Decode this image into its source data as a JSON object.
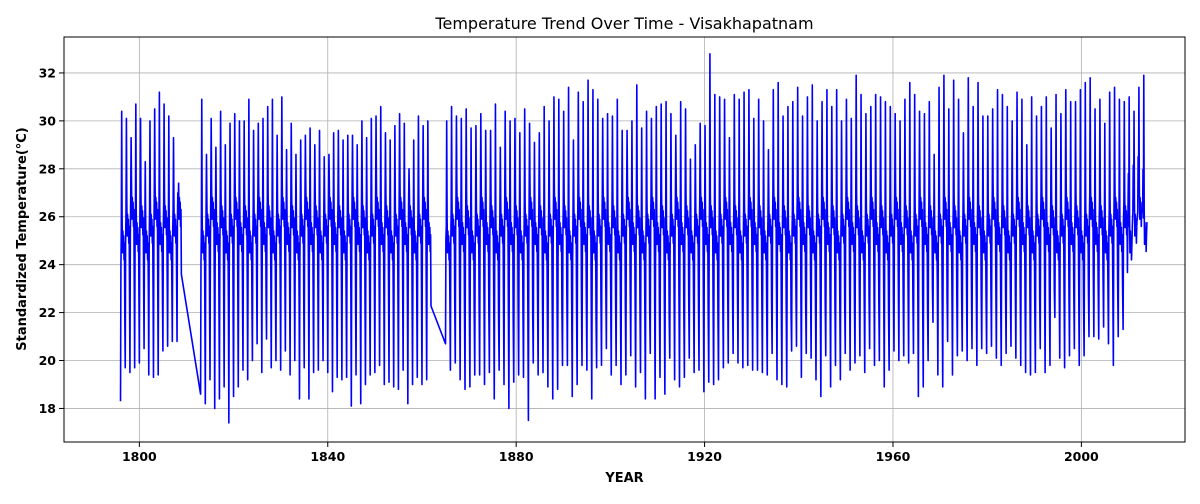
{
  "chart_data": {
    "type": "line",
    "title": "Temperature Trend Over Time - Visakhapatnam",
    "xlabel": "YEAR",
    "ylabel": "Standardized Temperature(°C)",
    "xlim": [
      1784,
      2022
    ],
    "ylim": [
      16.6,
      33.5
    ],
    "grid": true,
    "x_ticks": [
      1800,
      1840,
      1880,
      1920,
      1960,
      2000
    ],
    "y_ticks": [
      18,
      20,
      22,
      24,
      26,
      28,
      30,
      32
    ],
    "series": [
      {
        "color": "#0000ff",
        "segments": [
          {
            "start_year": 1796,
            "end_year": 1808,
            "peaks": [
              30.4,
              30.1,
              29.3,
              30.7,
              30.1,
              28.3,
              30.0,
              30.5,
              31.2,
              30.7,
              30.2,
              29.3,
              26.5
            ],
            "troughs": [
              18.3,
              19.7,
              19.5,
              19.7,
              19.9,
              20.5,
              19.4,
              19.3,
              19.4,
              20.4,
              20.6,
              20.8
            ]
          },
          {
            "start_year": 1813,
            "end_year": 1861,
            "peaks": [
              30.9,
              28.6,
              30.1,
              28.9,
              30.4,
              29.0,
              29.9,
              30.3,
              30.0,
              30.0,
              30.9,
              29.6,
              29.9,
              30.1,
              30.6,
              30.9,
              29.4,
              31.0,
              28.8,
              29.9,
              28.6,
              29.2,
              29.4,
              29.7,
              29.0,
              29.6,
              28.5,
              28.6,
              29.5,
              29.6,
              29.2,
              29.4,
              29.4,
              29.0,
              30.0,
              29.3,
              30.1,
              30.2,
              30.6,
              29.5,
              29.2,
              29.8,
              30.3,
              29.9,
              28.0,
              29.2,
              30.2,
              29.8,
              30.0
            ],
            "troughs": [
              18.6,
              18.2,
              19.2,
              18.0,
              18.4,
              18.9,
              17.4,
              18.5,
              18.9,
              19.6,
              19.2,
              20.0,
              20.7,
              19.5,
              20.9,
              19.7,
              20.0,
              19.6,
              20.4,
              19.4,
              20.0,
              18.4,
              19.7,
              18.4,
              19.5,
              19.6,
              20.0,
              19.5,
              18.7,
              19.3,
              19.2,
              19.3,
              18.1,
              19.4,
              18.2,
              19.0,
              19.4,
              19.5,
              19.8,
              19.0,
              19.1,
              18.9,
              18.8,
              19.6,
              18.2,
              19.0,
              19.3,
              19.0,
              19.2
            ]
          },
          {
            "start_year": 1865,
            "end_year": 2013,
            "peaks": [
              30.0,
              30.6,
              30.2,
              30.1,
              30.5,
              29.7,
              29.8,
              30.3,
              29.6,
              29.6,
              30.7,
              28.9,
              30.4,
              30.0,
              30.1,
              29.5,
              30.5,
              29.9,
              29.1,
              29.5,
              30.6,
              30.0,
              31.0,
              30.9,
              30.4,
              31.4,
              29.2,
              31.2,
              30.8,
              31.7,
              31.3,
              30.9,
              30.1,
              30.3,
              30.2,
              30.9,
              29.6,
              29.6,
              30.0,
              31.5,
              29.7,
              30.4,
              30.1,
              30.6,
              30.7,
              30.8,
              30.3,
              29.4,
              30.8,
              30.5,
              28.4,
              29.0,
              29.9,
              29.8,
              32.8,
              31.1,
              31.0,
              30.9,
              29.3,
              31.1,
              30.9,
              31.2,
              31.3,
              30.1,
              30.9,
              30.0,
              28.8,
              31.3,
              31.6,
              30.2,
              30.6,
              30.8,
              31.4,
              30.2,
              31.0,
              31.5,
              30.0,
              30.8,
              31.3,
              30.6,
              31.3,
              30.0,
              30.9,
              30.1,
              31.9,
              31.1,
              30.3,
              30.6,
              31.1,
              31.0,
              30.8,
              30.6,
              30.3,
              30.0,
              30.9,
              31.6,
              31.1,
              30.4,
              30.3,
              30.8,
              28.6,
              31.4,
              31.9,
              30.5,
              31.7,
              30.9,
              29.5,
              31.8,
              30.6,
              31.6,
              30.2,
              30.2,
              30.5,
              31.3,
              31.1,
              30.6,
              30.0,
              31.2,
              30.9,
              29.0,
              31.0,
              30.2,
              30.6,
              31.0,
              29.7,
              31.1,
              30.3,
              31.3,
              30.8,
              30.8,
              31.3,
              31.6,
              31.8,
              30.5,
              30.9,
              29.9,
              31.2,
              31.4,
              30.9,
              30.8,
              31.0,
              30.4,
              31.4,
              31.9
            ],
            "troughs": [
              20.7,
              19.6,
              19.9,
              19.2,
              18.8,
              18.9,
              19.4,
              19.4,
              19.0,
              19.5,
              18.4,
              19.6,
              19.0,
              18.0,
              19.1,
              19.4,
              19.3,
              17.5,
              19.9,
              19.4,
              19.5,
              18.9,
              18.4,
              18.8,
              19.8,
              19.8,
              18.5,
              19.0,
              19.8,
              19.6,
              18.4,
              19.7,
              19.8,
              20.5,
              19.4,
              19.8,
              19.0,
              19.4,
              20.2,
              18.9,
              19.5,
              18.4,
              20.3,
              18.4,
              19.3,
              18.6,
              20.1,
              19.2,
              18.9,
              19.3,
              20.1,
              19.5,
              19.6,
              18.7,
              19.1,
              19.0,
              19.2,
              19.7,
              19.9,
              20.3,
              19.9,
              19.7,
              19.8,
              19.6,
              19.6,
              19.5,
              19.4,
              20.3,
              19.2,
              19.0,
              18.9,
              20.4,
              20.6,
              19.3,
              20.3,
              20.1,
              19.2,
              18.5,
              20.2,
              18.9,
              19.8,
              19.2,
              20.3,
              19.6,
              19.9,
              20.2,
              19.5,
              20.5,
              19.8,
              20.0,
              18.9,
              19.6,
              20.4,
              20.0,
              20.2,
              19.9,
              20.3,
              18.5,
              18.9,
              20.0,
              21.6,
              19.4,
              18.9,
              20.8,
              19.4,
              20.2,
              20.4,
              20.0,
              20.5,
              19.8,
              20.5,
              20.3,
              20.6,
              20.1,
              19.8,
              20.3,
              20.6,
              20.1,
              19.8,
              19.5,
              19.4,
              19.5,
              20.5,
              19.5,
              19.8,
              21.8,
              20.1,
              19.7,
              20.2,
              20.5,
              19.8,
              20.2,
              21.0,
              21.0,
              20.9,
              21.4,
              20.7,
              19.8,
              21.0,
              21.3,
              26.2
            ]
          }
        ]
      }
    ]
  }
}
